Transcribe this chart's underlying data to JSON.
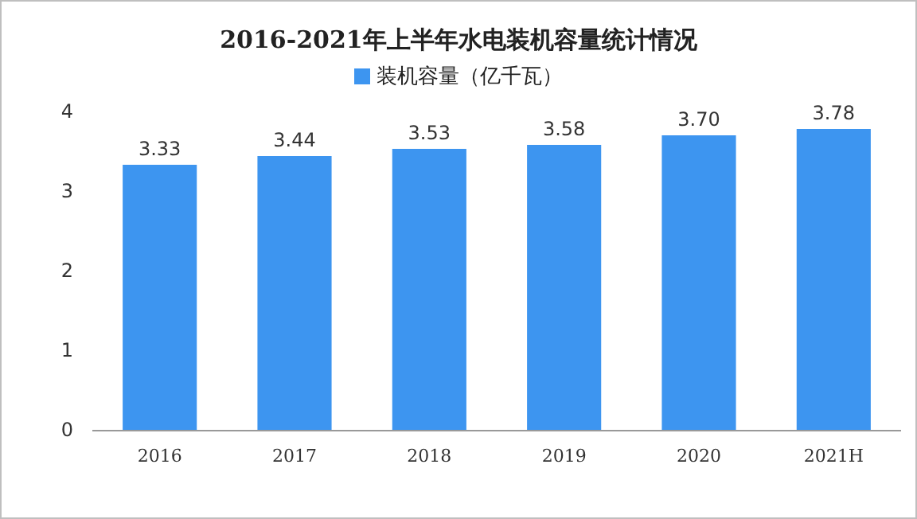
{
  "chart_data": {
    "type": "bar",
    "title": "2016-2021年上半年水电装机容量统计情况",
    "categories": [
      "2016",
      "2017",
      "2018",
      "2019",
      "2020",
      "2021H"
    ],
    "series": [
      {
        "name": "装机容量（亿千瓦）",
        "color": "#3d95f0",
        "values": [
          3.33,
          3.44,
          3.53,
          3.58,
          3.7,
          3.78
        ],
        "value_labels": [
          "3.33",
          "3.44",
          "3.53",
          "3.58",
          "3.70",
          "3.78"
        ]
      }
    ],
    "ylim": [
      0,
      4
    ],
    "yticks": [
      0,
      1,
      2,
      3,
      4
    ],
    "legend": "top",
    "grid": false
  }
}
